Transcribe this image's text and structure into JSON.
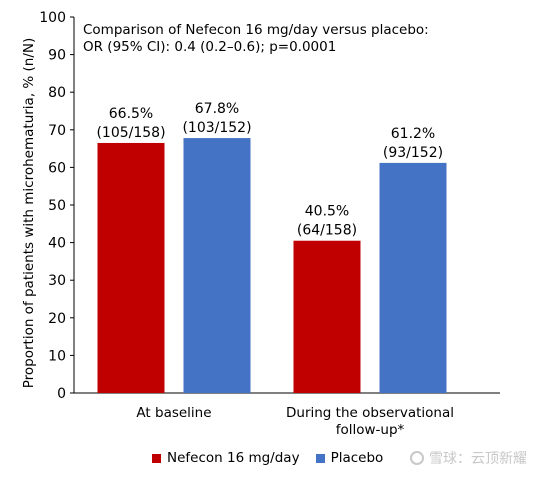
{
  "chart_data": {
    "type": "bar",
    "ylabel": "Proportion of patients with microhematuria, % (n/N)",
    "ylim": [
      0,
      100
    ],
    "yticks": [
      "0",
      "10",
      "20",
      "30",
      "40",
      "50",
      "60",
      "70",
      "80",
      "90",
      "100"
    ],
    "categories": [
      {
        "lines": [
          "At baseline"
        ]
      },
      {
        "lines": [
          "During the observational",
          "follow-up*"
        ]
      }
    ],
    "series": [
      {
        "name": "Nefecon 16 mg/day",
        "color": "#c00000",
        "values": [
          66.5,
          40.5
        ],
        "labels": [
          [
            "66.5%",
            "(105/158)"
          ],
          [
            "40.5%",
            "(64/158)"
          ]
        ]
      },
      {
        "name": "Placebo",
        "color": "#4472c4",
        "values": [
          67.8,
          61.2
        ],
        "labels": [
          [
            "67.8%",
            "(103/152)"
          ],
          [
            "61.2%",
            "(93/152)"
          ]
        ]
      }
    ],
    "annotation": [
      "Comparison of Nefecon 16 mg/day versus placebo:",
      "OR (95% CI): 0.4 (0.2–0.6); p=0.0001"
    ],
    "grid": false,
    "legend_position": "bottom"
  },
  "watermark": {
    "text": "雪球：云顶新耀"
  }
}
